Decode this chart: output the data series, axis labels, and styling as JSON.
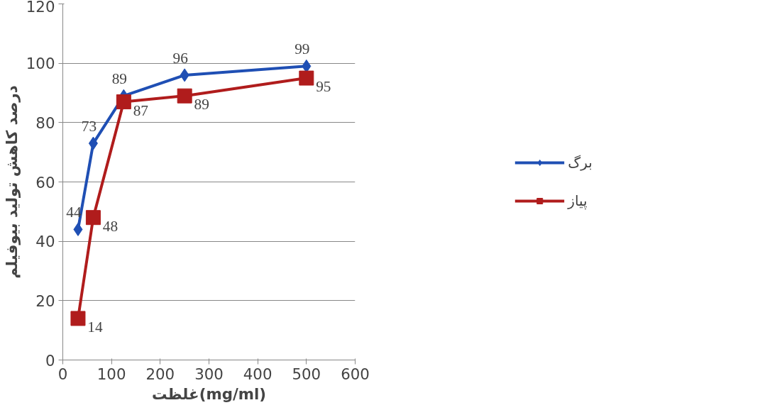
{
  "chart_data": {
    "type": "line",
    "xlabel": "غلظت(mg/ml)",
    "ylabel": "درصد کاهش تولید بیوفیلم",
    "x": [
      31.25,
      62.5,
      125,
      250,
      500
    ],
    "series": [
      {
        "name": "برگ",
        "color": "#1f4fb4",
        "marker": "diamond",
        "values": [
          44,
          73,
          89,
          96,
          99
        ]
      },
      {
        "name": "پیاز",
        "color": "#b01c1c",
        "marker": "square",
        "values": [
          14,
          48,
          87,
          89,
          95
        ]
      }
    ],
    "xlim": [
      0,
      600
    ],
    "xticks": [
      0,
      100,
      200,
      300,
      400,
      500,
      600
    ],
    "ylim": [
      0,
      120
    ],
    "yticks": [
      0,
      20,
      40,
      60,
      80,
      100,
      120
    ],
    "grid": "y",
    "legend": "right",
    "data_labels": true
  }
}
